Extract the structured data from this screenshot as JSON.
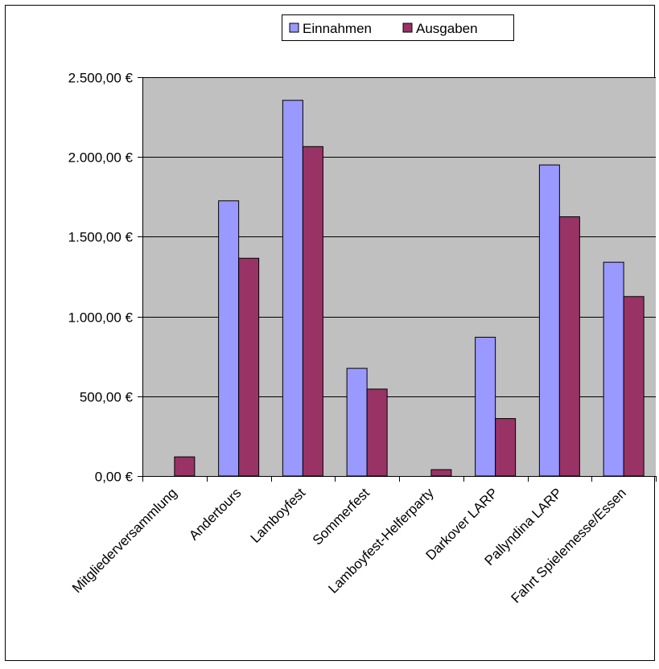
{
  "chart_data": {
    "type": "bar",
    "categories": [
      "Mitgliederversammlung",
      "Andertours",
      "Lamboyfest",
      "Sommerfest",
      "Lamboyfest-Helferparty",
      "Darkover LARP",
      "Pallyndina LARP",
      "Fahrt Spielemesse/Essen"
    ],
    "series": [
      {
        "name": "Einnahmen",
        "color": "#9999ff",
        "values": [
          0,
          1725,
          2355,
          675,
          0,
          870,
          1950,
          1340
        ]
      },
      {
        "name": "Ausgaben",
        "color": "#993366",
        "values": [
          120,
          1365,
          2065,
          545,
          40,
          360,
          1625,
          1125
        ]
      }
    ],
    "ylim": [
      0,
      2500
    ],
    "ytick_values": [
      0,
      500,
      1000,
      1500,
      2000,
      2500
    ],
    "ytick_labels": [
      "0,00 €",
      "500,00 €",
      "1.000,00 €",
      "1.500,00 €",
      "2.000,00 €",
      "2.500,00 €"
    ],
    "grid": true,
    "plot_background": "#c0c0c0",
    "legend_position": "top-right"
  }
}
